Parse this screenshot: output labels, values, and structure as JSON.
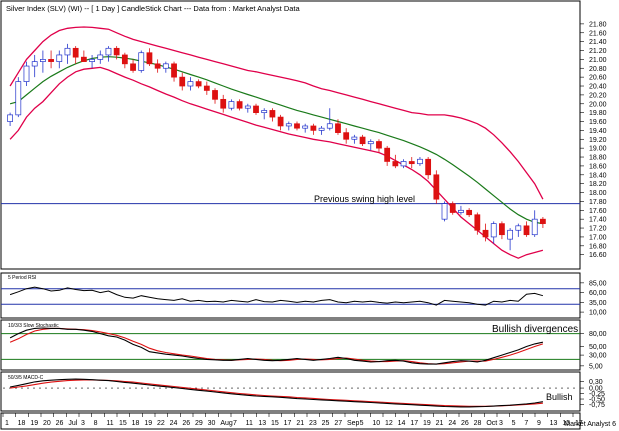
{
  "header": {
    "title": "Silver Index (SLV) (WI) -- [ 1 Day ] CandleStick Chart --- Data from : Market Analyst Data"
  },
  "footer": {
    "brand": "Market Analyst 6"
  },
  "colors": {
    "bollinger": "#e0004a",
    "ma": "#1a7a1a",
    "up_fill": "#ffffff",
    "up_edge": "#2233cc",
    "down": "#dd1111",
    "hline": "#2233aa",
    "osc_black": "#000000",
    "osc_red": "#dd1111",
    "rsi": "#000000"
  },
  "chart_data": [
    {
      "name": "price",
      "type": "candlestick",
      "title": "Silver Index (SLV) (WI) -- [ 1 Day ] CandleStick Chart --- Data from : Market Analyst Data",
      "ylim": [
        16.3,
        22.0
      ],
      "y_ticks": [
        "21.80",
        "21.60",
        "21.40",
        "21.20",
        "21.00",
        "20.80",
        "20.60",
        "20.40",
        "20.20",
        "20.00",
        "19.80",
        "19.60",
        "19.40",
        "19.20",
        "19.00",
        "18.80",
        "18.60",
        "18.40",
        "18.20",
        "18.00",
        "17.80",
        "17.60",
        "17.40",
        "17.20",
        "17.00",
        "16.80",
        "16.60"
      ],
      "x_labels": [
        "1",
        "18",
        "19",
        "20",
        "26",
        "Jul",
        "3",
        "8",
        "11",
        "15",
        "18",
        "19",
        "22",
        "24",
        "26",
        "29",
        "30",
        "Aug",
        "7",
        "11",
        "13",
        "15",
        "17",
        "21",
        "23",
        "25",
        "27",
        "Sep",
        "5",
        "10",
        "12",
        "14",
        "17",
        "19",
        "21",
        "24",
        "26",
        "28",
        "Oct",
        "3",
        "5",
        "7",
        "9",
        "13",
        "15",
        "17"
      ],
      "annotation": {
        "text": "Previous swing high level",
        "level": 17.75
      },
      "ohlc": [
        [
          19.6,
          19.8,
          19.5,
          19.75
        ],
        [
          19.75,
          20.6,
          19.7,
          20.5
        ],
        [
          20.5,
          20.95,
          20.4,
          20.85
        ],
        [
          20.85,
          21.1,
          20.6,
          20.95
        ],
        [
          20.95,
          21.2,
          20.7,
          21.0
        ],
        [
          21.0,
          21.2,
          20.8,
          20.95
        ],
        [
          20.95,
          21.2,
          20.8,
          21.1
        ],
        [
          21.1,
          21.35,
          20.9,
          21.25
        ],
        [
          21.25,
          21.3,
          20.9,
          21.05
        ],
        [
          21.05,
          21.2,
          20.95,
          20.95
        ],
        [
          20.95,
          21.1,
          20.8,
          21.0
        ],
        [
          21.0,
          21.2,
          20.9,
          21.1
        ],
        [
          21.1,
          21.3,
          20.95,
          21.25
        ],
        [
          21.25,
          21.3,
          21.0,
          21.1
        ],
        [
          21.1,
          21.15,
          20.8,
          20.9
        ],
        [
          20.9,
          21.0,
          20.7,
          20.75
        ],
        [
          20.75,
          21.2,
          20.7,
          21.15
        ],
        [
          21.15,
          21.25,
          20.85,
          20.9
        ],
        [
          20.9,
          21.0,
          20.7,
          20.8
        ],
        [
          20.8,
          20.95,
          20.7,
          20.9
        ],
        [
          20.9,
          20.95,
          20.5,
          20.6
        ],
        [
          20.6,
          20.7,
          20.3,
          20.4
        ],
        [
          20.4,
          20.6,
          20.3,
          20.5
        ],
        [
          20.5,
          20.55,
          20.35,
          20.4
        ],
        [
          20.4,
          20.5,
          20.2,
          20.3
        ],
        [
          20.3,
          20.35,
          20.0,
          20.1
        ],
        [
          20.1,
          20.2,
          19.8,
          19.9
        ],
        [
          19.9,
          20.1,
          19.85,
          20.05
        ],
        [
          20.05,
          20.1,
          19.85,
          19.9
        ],
        [
          19.9,
          20.0,
          19.8,
          19.95
        ],
        [
          19.95,
          20.0,
          19.75,
          19.8
        ],
        [
          19.8,
          19.9,
          19.65,
          19.85
        ],
        [
          19.85,
          19.9,
          19.6,
          19.7
        ],
        [
          19.7,
          19.75,
          19.4,
          19.5
        ],
        [
          19.5,
          19.6,
          19.4,
          19.55
        ],
        [
          19.55,
          19.6,
          19.4,
          19.45
        ],
        [
          19.45,
          19.55,
          19.35,
          19.5
        ],
        [
          19.5,
          19.55,
          19.3,
          19.4
        ],
        [
          19.4,
          19.5,
          19.3,
          19.45
        ],
        [
          19.45,
          19.9,
          19.4,
          19.55
        ],
        [
          19.55,
          19.65,
          19.3,
          19.35
        ],
        [
          19.35,
          19.45,
          19.1,
          19.2
        ],
        [
          19.2,
          19.3,
          19.1,
          19.25
        ],
        [
          19.25,
          19.3,
          19.05,
          19.1
        ],
        [
          19.1,
          19.2,
          18.95,
          19.15
        ],
        [
          19.15,
          19.2,
          18.9,
          19.0
        ],
        [
          19.0,
          19.05,
          18.6,
          18.7
        ],
        [
          18.7,
          18.85,
          18.55,
          18.6
        ],
        [
          18.6,
          18.75,
          18.55,
          18.7
        ],
        [
          18.7,
          18.8,
          18.55,
          18.65
        ],
        [
          18.65,
          18.8,
          18.6,
          18.75
        ],
        [
          18.75,
          18.8,
          18.3,
          18.4
        ],
        [
          18.4,
          18.5,
          17.75,
          17.85
        ],
        [
          17.4,
          17.8,
          17.35,
          17.75
        ],
        [
          17.75,
          17.8,
          17.5,
          17.55
        ],
        [
          17.55,
          17.7,
          17.5,
          17.6
        ],
        [
          17.6,
          17.65,
          17.45,
          17.5
        ],
        [
          17.5,
          17.55,
          17.05,
          17.15
        ],
        [
          17.15,
          17.3,
          16.9,
          17.0
        ],
        [
          17.0,
          17.35,
          16.85,
          17.3
        ],
        [
          17.3,
          17.35,
          16.95,
          17.05
        ],
        [
          16.95,
          17.2,
          16.7,
          17.15
        ],
        [
          17.15,
          17.3,
          17.0,
          17.25
        ],
        [
          17.25,
          17.35,
          17.0,
          17.05
        ],
        [
          17.05,
          17.6,
          17.0,
          17.4
        ],
        [
          17.4,
          17.45,
          17.2,
          17.3
        ]
      ],
      "ma": [
        20.0,
        20.05,
        20.2,
        20.35,
        20.5,
        20.62,
        20.72,
        20.82,
        20.9,
        20.97,
        21.02,
        21.05,
        21.06,
        21.05,
        21.03,
        21.0,
        20.96,
        20.92,
        20.88,
        20.83,
        20.78,
        20.72,
        20.66,
        20.6,
        20.54,
        20.47,
        20.4,
        20.33,
        20.27,
        20.21,
        20.15,
        20.09,
        20.03,
        19.97,
        19.91,
        19.85,
        19.8,
        19.75,
        19.7,
        19.65,
        19.6,
        19.55,
        19.5,
        19.45,
        19.4,
        19.35,
        19.29,
        19.23,
        19.17,
        19.1,
        19.03,
        18.95,
        18.86,
        18.75,
        18.63,
        18.5,
        18.37,
        18.23,
        18.08,
        17.93,
        17.78,
        17.63,
        17.5,
        17.4,
        17.33,
        17.3
      ],
      "bb_upper": [
        20.4,
        20.7,
        21.0,
        21.2,
        21.4,
        21.55,
        21.65,
        21.7,
        21.72,
        21.73,
        21.72,
        21.7,
        21.68,
        21.6,
        21.52,
        21.45,
        21.4,
        21.35,
        21.3,
        21.25,
        21.2,
        21.15,
        21.1,
        21.05,
        21.0,
        20.95,
        20.9,
        20.85,
        20.8,
        20.75,
        20.72,
        20.68,
        20.64,
        20.6,
        20.56,
        20.52,
        20.47,
        20.4,
        20.34,
        20.3,
        20.25,
        20.2,
        20.15,
        20.1,
        20.05,
        20.0,
        19.95,
        19.9,
        19.85,
        19.8,
        19.78,
        19.75,
        19.75,
        19.75,
        19.72,
        19.68,
        19.62,
        19.55,
        19.45,
        19.3,
        19.12,
        18.92,
        18.7,
        18.45,
        18.2,
        17.85
      ],
      "bb_lower": [
        19.2,
        19.4,
        19.7,
        19.9,
        20.05,
        20.25,
        20.45,
        20.6,
        20.72,
        20.78,
        20.8,
        20.82,
        20.76,
        20.68,
        20.6,
        20.53,
        20.45,
        20.38,
        20.3,
        20.22,
        20.15,
        20.07,
        20.0,
        19.94,
        19.88,
        19.82,
        19.76,
        19.7,
        19.64,
        19.58,
        19.52,
        19.47,
        19.42,
        19.37,
        19.32,
        19.28,
        19.24,
        19.2,
        19.17,
        19.14,
        19.1,
        19.06,
        19.02,
        18.98,
        18.94,
        18.9,
        18.82,
        18.72,
        18.62,
        18.52,
        18.4,
        18.25,
        18.05,
        17.85,
        17.65,
        17.45,
        17.3,
        17.15,
        17.0,
        16.85,
        16.7,
        16.6,
        16.52,
        16.6,
        16.65,
        16.7
      ]
    },
    {
      "name": "rsi",
      "type": "line",
      "title": "5 Period RSI",
      "ylim": [
        0,
        100
      ],
      "y_ticks": [
        "85,00",
        "60,00",
        "35,00",
        "10,00"
      ],
      "levels": [
        70,
        30
      ],
      "values": [
        55,
        62,
        70,
        74,
        70,
        64,
        66,
        72,
        68,
        65,
        66,
        60,
        64,
        55,
        48,
        46,
        52,
        48,
        44,
        42,
        40,
        44,
        38,
        40,
        37,
        38,
        36,
        40,
        38,
        36,
        42,
        37,
        36,
        40,
        38,
        35,
        38,
        36,
        40,
        42,
        36,
        34,
        38,
        36,
        38,
        35,
        33,
        36,
        34,
        36,
        38,
        34,
        28,
        40,
        38,
        36,
        34,
        30,
        28,
        38,
        36,
        40,
        38,
        56,
        58,
        52
      ]
    },
    {
      "name": "stochastic",
      "type": "line",
      "title": "10/3/3 Slow Stochastic",
      "ylim": [
        0,
        100
      ],
      "y_ticks": [
        "80,00",
        "50,00",
        "30,00",
        "5,00"
      ],
      "levels": [
        80,
        20
      ],
      "annotation": "Bullish divergences",
      "series": [
        {
          "name": "%K",
          "values": [
            70,
            80,
            88,
            92,
            93,
            92,
            92,
            90,
            90,
            88,
            85,
            80,
            75,
            72,
            65,
            55,
            48,
            38,
            35,
            32,
            30,
            28,
            25,
            22,
            20,
            19,
            18,
            18,
            20,
            22,
            20,
            18,
            17,
            18,
            20,
            22,
            20,
            18,
            20,
            22,
            25,
            22,
            18,
            16,
            14,
            15,
            17,
            18,
            16,
            12,
            10,
            9,
            9,
            12,
            15,
            17,
            16,
            14,
            18,
            24,
            30,
            36,
            42,
            50,
            56,
            60
          ]
        },
        {
          "name": "%D",
          "values": [
            60,
            68,
            78,
            86,
            90,
            92,
            92,
            91,
            90,
            89,
            87,
            84,
            80,
            76,
            70,
            62,
            55,
            46,
            40,
            36,
            33,
            30,
            28,
            25,
            22,
            20,
            19,
            18,
            19,
            20,
            21,
            20,
            18,
            17,
            18,
            20,
            21,
            20,
            19,
            20,
            22,
            23,
            21,
            18,
            16,
            15,
            15,
            16,
            17,
            15,
            12,
            10,
            9,
            10,
            12,
            14,
            16,
            16,
            16,
            20,
            25,
            30,
            36,
            43,
            50,
            56
          ]
        }
      ]
    },
    {
      "name": "macd",
      "type": "line",
      "title": "50/3/5 MACD-C",
      "ylim": [
        -1.0,
        0.55
      ],
      "y_ticks": [
        "0,30",
        "0,00",
        "-0,25",
        "-0,50",
        "-0,75"
      ],
      "annotation": "Bullish",
      "series": [
        {
          "name": "MACD",
          "values": [
            0.05,
            0.12,
            0.2,
            0.28,
            0.33,
            0.36,
            0.38,
            0.4,
            0.41,
            0.4,
            0.38,
            0.36,
            0.34,
            0.3,
            0.26,
            0.22,
            0.18,
            0.14,
            0.1,
            0.06,
            0.02,
            -0.02,
            -0.06,
            -0.1,
            -0.14,
            -0.18,
            -0.22,
            -0.26,
            -0.3,
            -0.33,
            -0.36,
            -0.38,
            -0.4,
            -0.42,
            -0.45,
            -0.48,
            -0.5,
            -0.52,
            -0.54,
            -0.56,
            -0.58,
            -0.6,
            -0.62,
            -0.64,
            -0.66,
            -0.68,
            -0.7,
            -0.72,
            -0.74,
            -0.76,
            -0.78,
            -0.8,
            -0.82,
            -0.84,
            -0.85,
            -0.86,
            -0.86,
            -0.85,
            -0.84,
            -0.82,
            -0.8,
            -0.78,
            -0.75,
            -0.72,
            -0.68,
            -0.62
          ]
        },
        {
          "name": "Signal",
          "values": [
            0.0,
            0.05,
            0.1,
            0.16,
            0.22,
            0.27,
            0.31,
            0.34,
            0.36,
            0.37,
            0.37,
            0.36,
            0.35,
            0.33,
            0.3,
            0.27,
            0.23,
            0.19,
            0.15,
            0.11,
            0.07,
            0.03,
            -0.01,
            -0.05,
            -0.09,
            -0.13,
            -0.17,
            -0.21,
            -0.25,
            -0.28,
            -0.31,
            -0.34,
            -0.36,
            -0.38,
            -0.4,
            -0.43,
            -0.45,
            -0.47,
            -0.5,
            -0.52,
            -0.54,
            -0.56,
            -0.58,
            -0.6,
            -0.62,
            -0.64,
            -0.66,
            -0.68,
            -0.7,
            -0.72,
            -0.74,
            -0.76,
            -0.78,
            -0.8,
            -0.81,
            -0.82,
            -0.83,
            -0.83,
            -0.83,
            -0.82,
            -0.81,
            -0.79,
            -0.77,
            -0.75,
            -0.72,
            -0.69
          ]
        }
      ]
    }
  ]
}
